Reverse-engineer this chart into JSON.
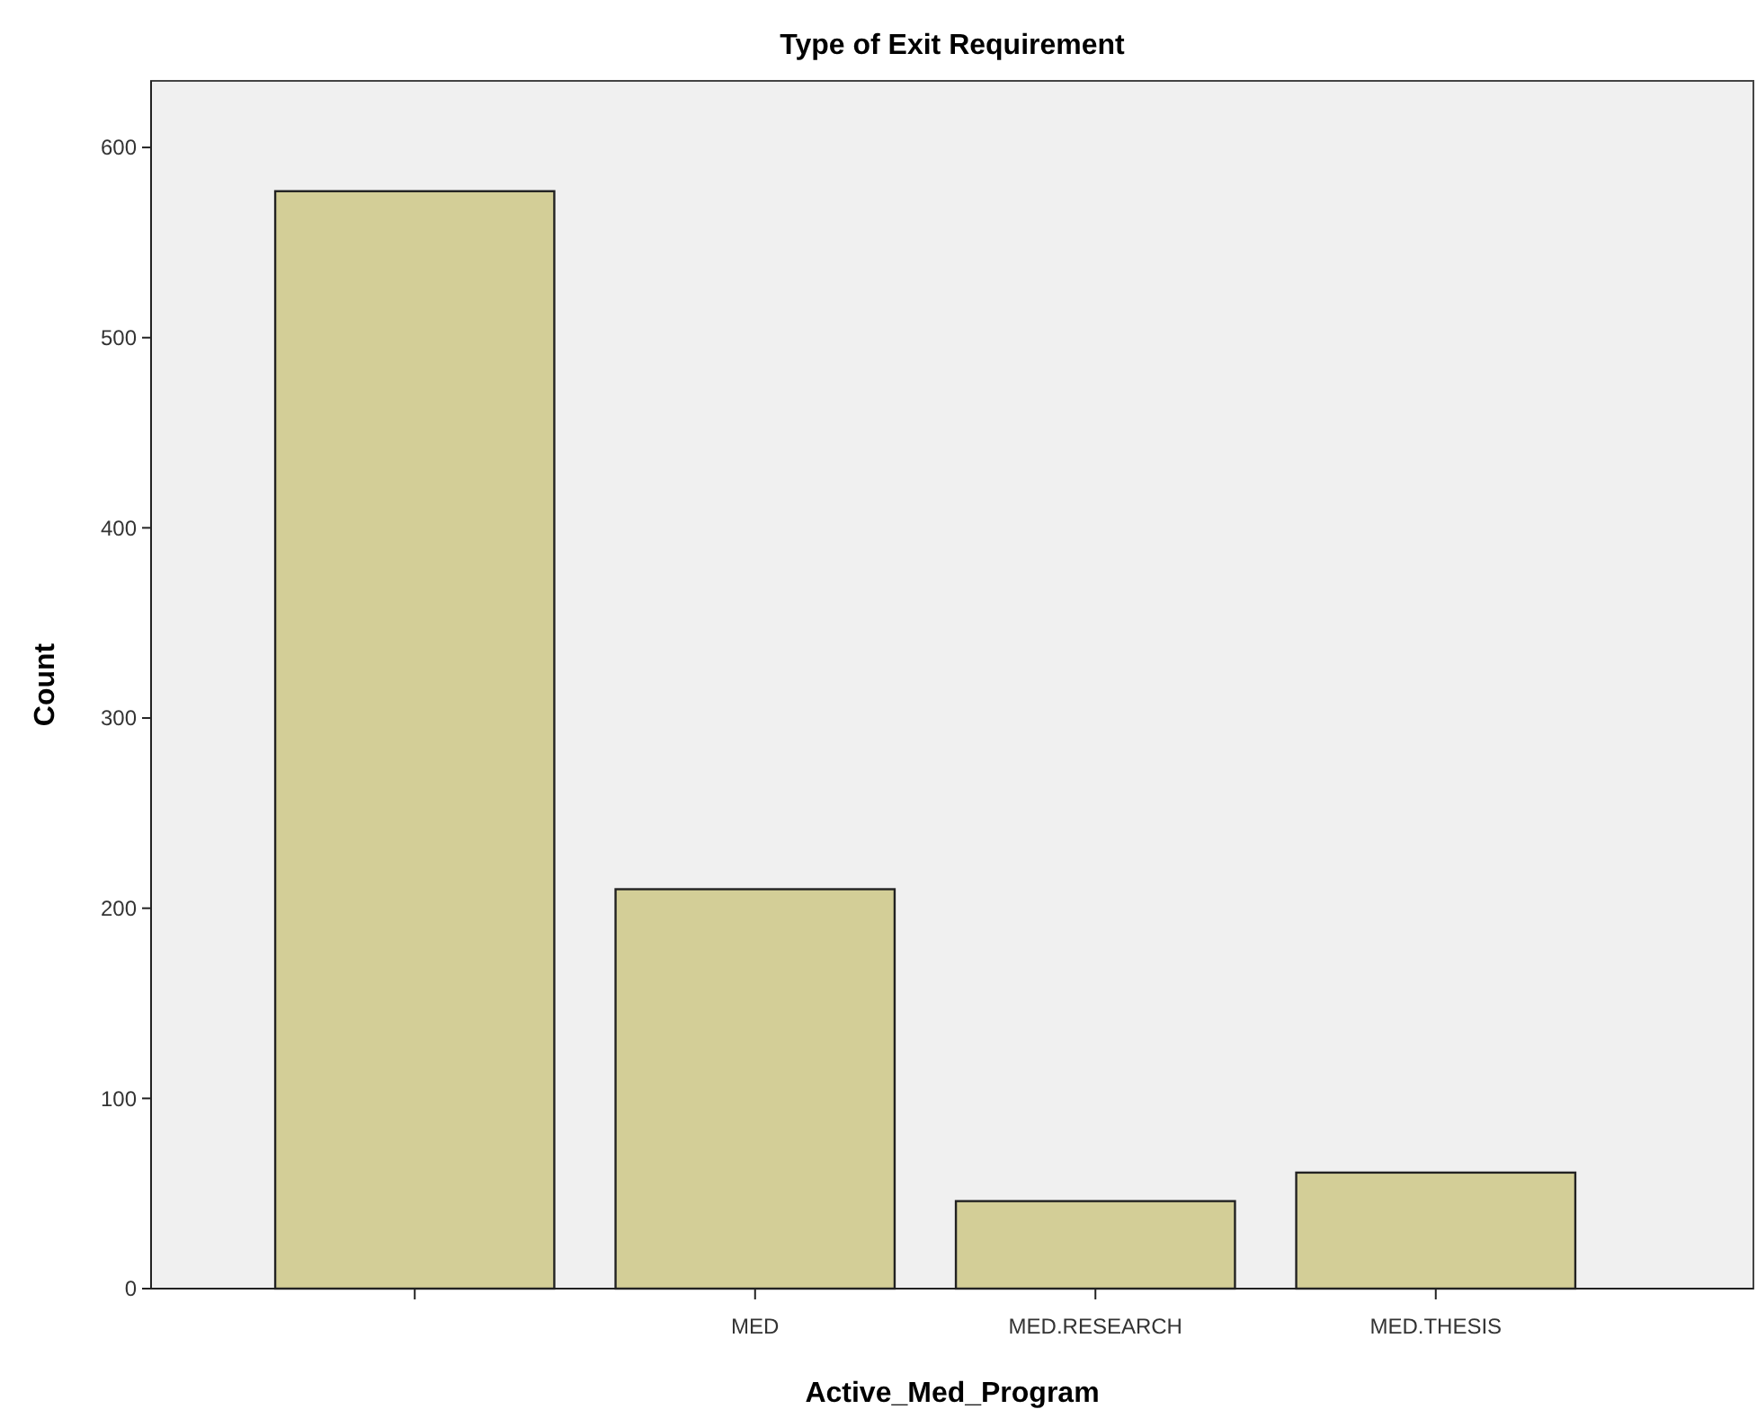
{
  "chart_data": {
    "type": "bar",
    "title": "Type of Exit Requirement",
    "xlabel": "Active_Med_Program",
    "ylabel": "Count",
    "categories": [
      null,
      "MED",
      "MED.RESEARCH",
      "MED.THESIS"
    ],
    "values": [
      577,
      210,
      46,
      61
    ],
    "color": "#d3ce97",
    "ylim": [
      0,
      635
    ],
    "yticks": [
      0,
      100,
      200,
      300,
      400,
      500,
      600
    ],
    "grid": false
  }
}
